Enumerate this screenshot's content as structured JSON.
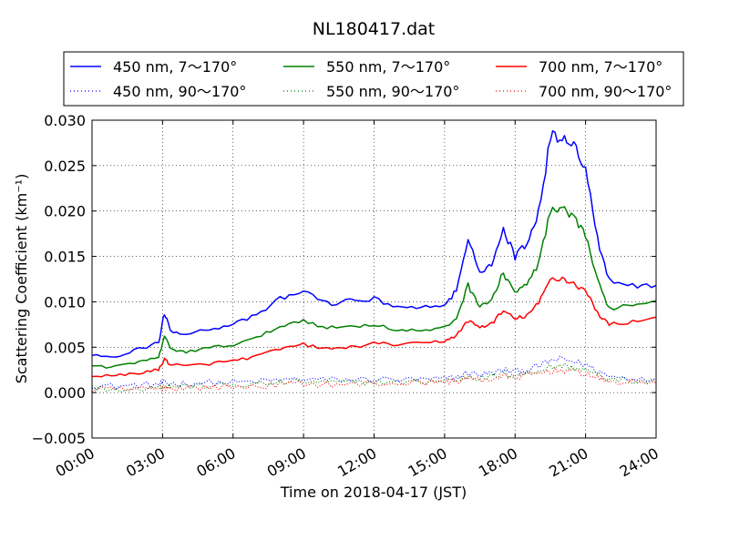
{
  "chart_data": {
    "type": "line",
    "title": "NL180417.dat",
    "xlabel": "Time on 2018-04-17 (JST)",
    "ylabel": "Scattering Coefficient (km⁻¹)",
    "xlim": [
      "00:00",
      "24:00"
    ],
    "ylim": [
      -0.005,
      0.03
    ],
    "x_ticks": [
      "00:00",
      "03:00",
      "06:00",
      "09:00",
      "12:00",
      "15:00",
      "18:00",
      "21:00",
      "24:00"
    ],
    "y_ticks": [
      "0.030",
      "0.025",
      "0.020",
      "0.015",
      "0.010",
      "0.005",
      "0.000",
      "−0.005"
    ],
    "grid": true,
    "legend_position": "top",
    "x": [
      "00:00",
      "01:00",
      "02:00",
      "02:50",
      "03:05",
      "03:20",
      "04:00",
      "05:00",
      "06:00",
      "07:00",
      "08:00",
      "09:00",
      "10:00",
      "11:00",
      "12:00",
      "13:00",
      "14:00",
      "15:00",
      "15:30",
      "16:00",
      "16:30",
      "17:00",
      "17:30",
      "18:00",
      "18:30",
      "19:00",
      "19:30",
      "20:00",
      "20:30",
      "21:00",
      "21:30",
      "22:00",
      "23:00",
      "24:00"
    ],
    "series": [
      {
        "name": "450 nm, 7～170°",
        "color": "#0000ff",
        "style": "solid",
        "values": [
          0.0042,
          0.004,
          0.0048,
          0.0055,
          0.0088,
          0.0068,
          0.0065,
          0.007,
          0.0075,
          0.0085,
          0.0103,
          0.0112,
          0.0098,
          0.0101,
          0.0103,
          0.0095,
          0.0093,
          0.0097,
          0.0112,
          0.0165,
          0.0135,
          0.014,
          0.018,
          0.015,
          0.0165,
          0.02,
          0.028,
          0.0285,
          0.027,
          0.025,
          0.017,
          0.0125,
          0.0118,
          0.0118
        ]
      },
      {
        "name": "550 nm, 7～170°",
        "color": "#008000",
        "style": "solid",
        "values": [
          0.003,
          0.0028,
          0.0034,
          0.0038,
          0.0063,
          0.0048,
          0.0045,
          0.0049,
          0.0053,
          0.006,
          0.0073,
          0.008,
          0.0071,
          0.0073,
          0.0075,
          0.0069,
          0.0068,
          0.0071,
          0.0082,
          0.0118,
          0.0096,
          0.0101,
          0.0132,
          0.0111,
          0.0118,
          0.0143,
          0.0198,
          0.0202,
          0.019,
          0.0175,
          0.0123,
          0.0093,
          0.0097,
          0.0101
        ]
      },
      {
        "name": "700 nm, 7～170°",
        "color": "#ff0000",
        "style": "solid",
        "values": [
          0.0019,
          0.0018,
          0.0022,
          0.0025,
          0.0037,
          0.0031,
          0.0029,
          0.0032,
          0.0035,
          0.004,
          0.0048,
          0.0053,
          0.0048,
          0.005,
          0.0054,
          0.0053,
          0.0054,
          0.0057,
          0.0063,
          0.0079,
          0.0072,
          0.0076,
          0.009,
          0.0081,
          0.0085,
          0.0098,
          0.0125,
          0.0126,
          0.012,
          0.0112,
          0.0088,
          0.0075,
          0.0078,
          0.0083
        ]
      },
      {
        "name": "450 nm, 90～170°",
        "color": "#0000ff",
        "style": "dotted",
        "values": [
          0.0008,
          0.0007,
          0.0008,
          0.0009,
          0.0011,
          0.001,
          0.001,
          0.0011,
          0.0011,
          0.0012,
          0.0014,
          0.0015,
          0.0014,
          0.0014,
          0.0015,
          0.0014,
          0.0014,
          0.0015,
          0.0017,
          0.0022,
          0.002,
          0.0021,
          0.0025,
          0.0023,
          0.0025,
          0.0029,
          0.0035,
          0.0037,
          0.0034,
          0.0031,
          0.0024,
          0.0018,
          0.0016,
          0.0016
        ]
      },
      {
        "name": "550 nm, 90～170°",
        "color": "#008000",
        "style": "dotted",
        "values": [
          0.0005,
          0.0004,
          0.0005,
          0.0006,
          0.0008,
          0.0007,
          0.0007,
          0.0008,
          0.0008,
          0.0009,
          0.0011,
          0.0012,
          0.0011,
          0.0011,
          0.0012,
          0.0011,
          0.0012,
          0.0013,
          0.0014,
          0.0018,
          0.0016,
          0.0017,
          0.0021,
          0.0019,
          0.0021,
          0.0024,
          0.0028,
          0.003,
          0.0027,
          0.0025,
          0.0019,
          0.0014,
          0.0013,
          0.0012
        ]
      },
      {
        "name": "700 nm, 90～170°",
        "color": "#ff0000",
        "style": "dotted",
        "values": [
          0.0003,
          0.0003,
          0.0004,
          0.0004,
          0.0006,
          0.0005,
          0.0005,
          0.0006,
          0.0006,
          0.0007,
          0.0009,
          0.001,
          0.0009,
          0.0009,
          0.001,
          0.001,
          0.0011,
          0.0012,
          0.0013,
          0.0016,
          0.0014,
          0.0015,
          0.0018,
          0.0017,
          0.0019,
          0.0021,
          0.0024,
          0.0025,
          0.0023,
          0.0021,
          0.0016,
          0.0012,
          0.0011,
          0.0011
        ]
      }
    ]
  }
}
